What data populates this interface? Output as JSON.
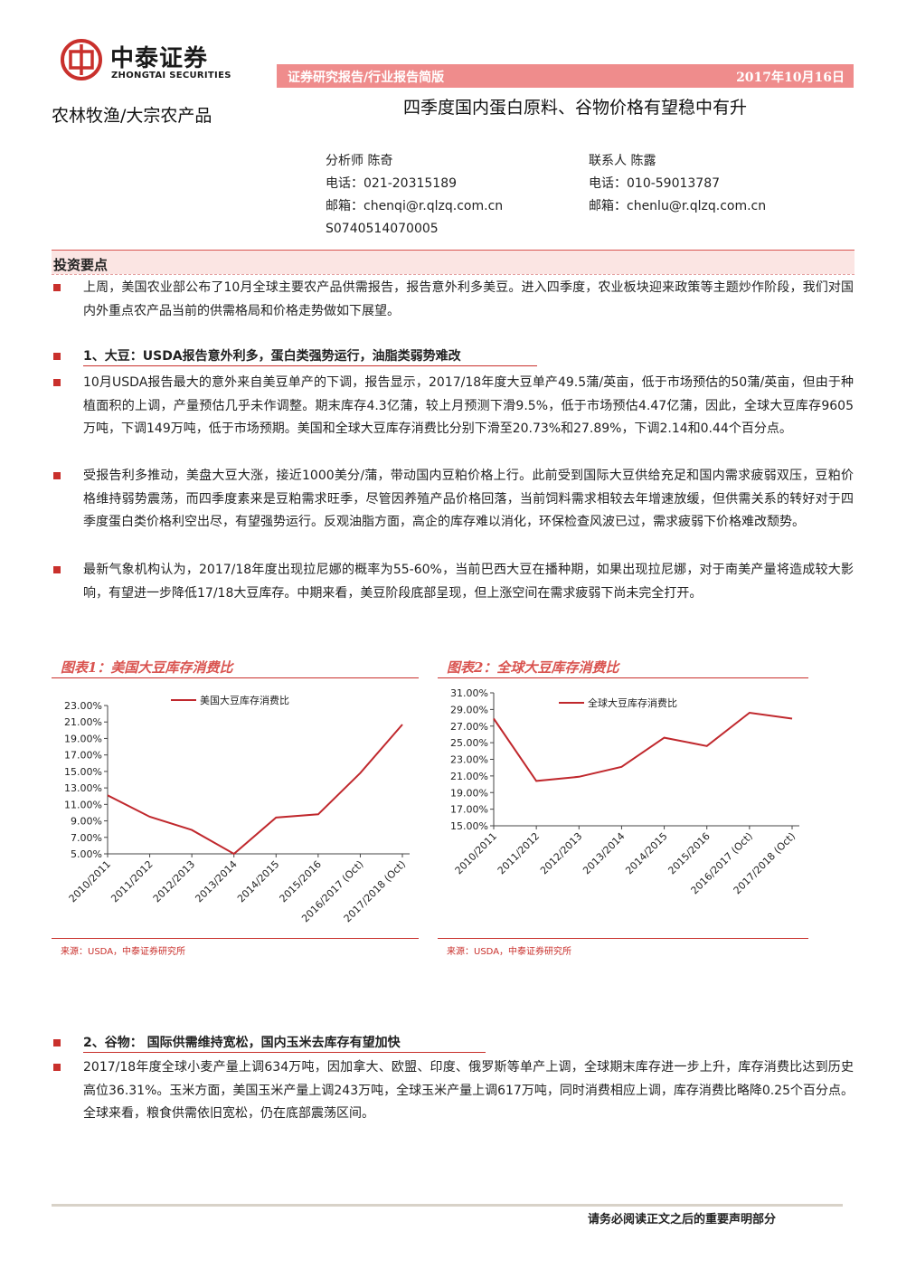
{
  "header": {
    "company_cn": "中泰证券",
    "company_en": "ZHONGTAI SECURITIES",
    "report_type": "证券研究报告/行业报告简版",
    "date": "2017年10月16日",
    "sector": "农林牧渔/大宗农产品",
    "title": "四季度国内蛋白原料、谷物价格有望稳中有升"
  },
  "analyst": {
    "name": "分析师 陈奇",
    "phone": "电话：021-20315189",
    "email": "邮箱：chenqi@r.qlzq.com.cn",
    "license": "S0740514070005"
  },
  "contact": {
    "name": "联系人 陈露",
    "phone": "电话：010-59013787",
    "email": "邮箱：chenlu@r.qlzq.com.cn"
  },
  "section_title": "投资要点",
  "intro": "上周，美国农业部公布了10月全球主要农产品供需报告，报告意外利多美豆。进入四季度，农业板块迎来政策等主题炒作阶段，我们对国内外重点农产品当前的供需格局和价格走势做如下展望。",
  "topic1": {
    "heading": "1、大豆：USDA报告意外利多，蛋白类强势运行，油脂类弱势难改",
    "paragraphs": [
      "10月USDA报告最大的意外来自美豆单产的下调，报告显示，2017/18年度大豆单产49.5蒲/英亩，低于市场预估的50蒲/英亩，但由于种植面积的上调，产量预估几乎未作调整。期末库存4.3亿蒲，较上月预测下滑9.5%，低于市场预估4.47亿蒲，因此，全球大豆库存9605万吨，下调149万吨，低于市场预期。美国和全球大豆库存消费比分别下滑至20.73%和27.89%，下调2.14和0.44个百分点。",
      "受报告利多推动，美盘大豆大涨，接近1000美分/蒲，带动国内豆粕价格上行。此前受到国际大豆供给充足和国内需求疲弱双压，豆粕价格维持弱势震荡，而四季度素来是豆粕需求旺季，尽管因养殖产品价格回落，当前饲料需求相较去年增速放缓，但供需关系的转好对于四季度蛋白类价格利空出尽，有望强势运行。反观油脂方面，高企的库存难以消化，环保检查风波已过，需求疲弱下价格难改颓势。",
      "最新气象机构认为，2017/18年度出现拉尼娜的概率为55-60%，当前巴西大豆在播种期，如果出现拉尼娜，对于南美产量将造成较大影响，有望进一步降低17/18大豆库存。中期来看，美豆阶段底部呈现，但上涨空间在需求疲弱下尚未完全打开。"
    ]
  },
  "figures": [
    {
      "title": "图表1：美国大豆库存消费比",
      "source": "来源：USDA，中泰证券研究所"
    },
    {
      "title": "图表2：全球大豆库存消费比",
      "source": "来源：USDA，中泰证券研究所"
    }
  ],
  "chart_data": [
    {
      "type": "line",
      "title": "图表1：美国大豆库存消费比",
      "categories": [
        "2010/2011",
        "2011/2012",
        "2012/2013",
        "2013/2014",
        "2014/2015",
        "2015/2016",
        "2016/2017 (Oct)",
        "2017/2018 (Oct)"
      ],
      "series": [
        {
          "name": "美国大豆库存消费比",
          "values": [
            12.1,
            9.5,
            7.9,
            5.0,
            9.4,
            9.8,
            14.8,
            20.7
          ]
        }
      ],
      "yticks": [
        "5.00%",
        "7.00%",
        "9.00%",
        "11.00%",
        "13.00%",
        "15.00%",
        "17.00%",
        "19.00%",
        "21.00%",
        "23.00%"
      ],
      "ylim": [
        5,
        23
      ],
      "legend": "top",
      "color": "#c0282d"
    },
    {
      "type": "line",
      "title": "图表2：全球大豆库存消费比",
      "categories": [
        "2010/2011",
        "2011/2012",
        "2012/2013",
        "2013/2014",
        "2014/2015",
        "2015/2016",
        "2016/2017 (Oct)",
        "2017/2018 (Oct)"
      ],
      "series": [
        {
          "name": "全球大豆库存消费比",
          "values": [
            27.9,
            20.4,
            20.9,
            22.1,
            25.6,
            24.6,
            28.6,
            27.9
          ]
        }
      ],
      "yticks": [
        "15.00%",
        "17.00%",
        "19.00%",
        "21.00%",
        "23.00%",
        "25.00%",
        "27.00%",
        "29.00%",
        "31.00%"
      ],
      "ylim": [
        15,
        31
      ],
      "legend": "top",
      "color": "#c0282d"
    }
  ],
  "topic2": {
    "heading": "2、谷物： 国际供需维持宽松，国内玉米去库存有望加快",
    "paragraphs": [
      "2017/18年度全球小麦产量上调634万吨，因加拿大、欧盟、印度、俄罗斯等单产上调，全球期末库存进一步上升，库存消费比达到历史高位36.31%。玉米方面，美国玉米产量上调243万吨，全球玉米产量上调617万吨，同时消费相应上调，库存消费比略降0.25个百分点。全球来看，粮食供需依旧宽松，仍在底部震荡区间。"
    ]
  },
  "footer": {
    "note": "请务必阅读正文之后的重要声明部分"
  }
}
